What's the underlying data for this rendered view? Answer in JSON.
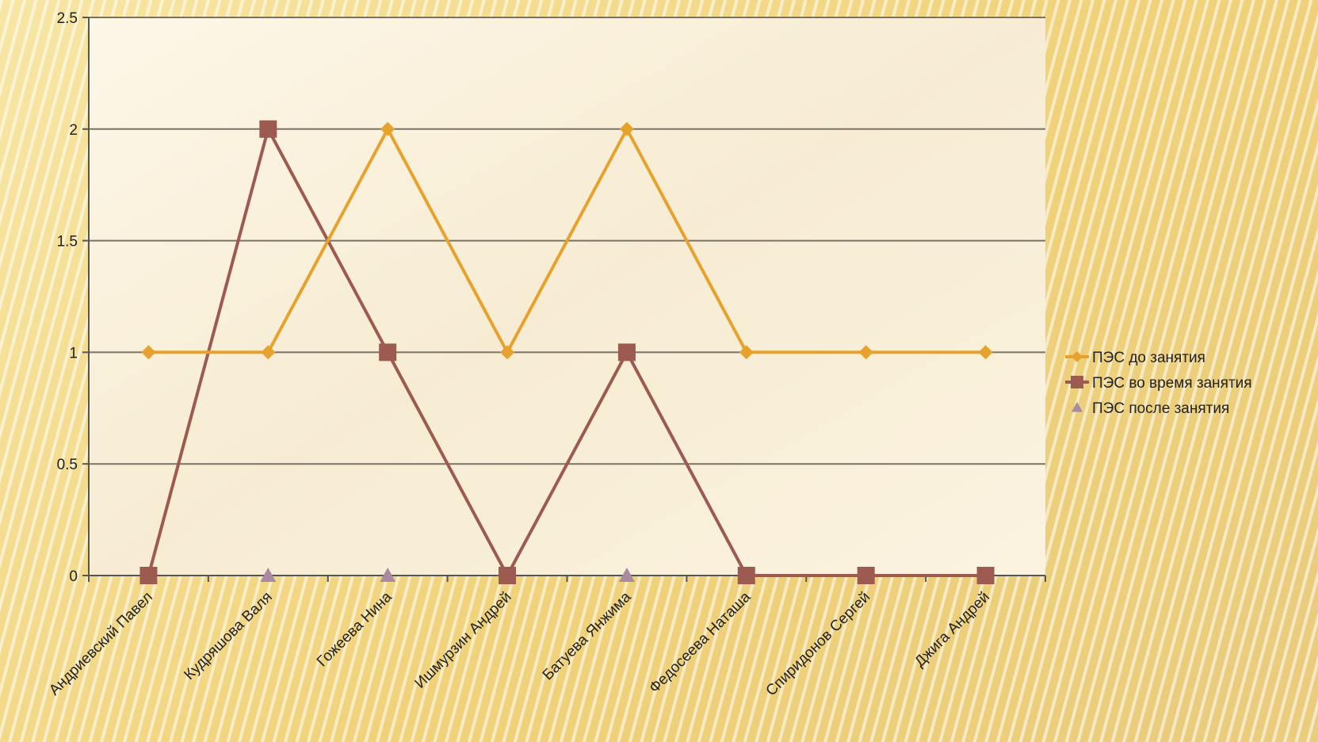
{
  "chart_data": {
    "type": "line",
    "categories": [
      "Андриевский Павел",
      "Кудряшова Валя",
      "Гожеева Нина",
      "Ишмурзин Андрей",
      "Батуева Янжима",
      "Федосеева Наташа",
      "Спиридонов Сергей",
      "Джига Андрей"
    ],
    "series": [
      {
        "name": "ПЭС до занятия",
        "values": [
          1,
          1,
          2,
          1,
          2,
          1,
          1,
          1
        ],
        "color": "#e6a22c",
        "marker": "diamond"
      },
      {
        "name": "ПЭС во время занятия",
        "values": [
          0,
          2,
          1,
          0,
          1,
          0,
          0,
          0
        ],
        "color": "#9c5a50",
        "marker": "square"
      },
      {
        "name": "ПЭС после занятия",
        "values": [
          0,
          0,
          0,
          0,
          0,
          0,
          0,
          0
        ],
        "color": "#a98aa0",
        "marker": "triangle"
      }
    ],
    "yticks": [
      "0",
      "0.5",
      "1",
      "1.5",
      "2",
      "2.5"
    ],
    "ylim": [
      0,
      2.5
    ],
    "grid": true,
    "legend_position": "right"
  }
}
